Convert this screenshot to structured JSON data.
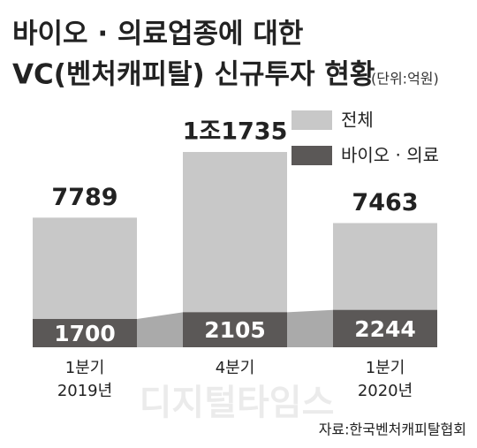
{
  "chart_data": {
    "type": "overlap-bar",
    "title": "바이오 · 의료업종에 대한",
    "subtitle": "VC(벤처캐피탈) 신규투자 현황",
    "unit": "(단위:억원)",
    "categories": [
      "1분기\n2019년",
      "4분기",
      "1분기\n2020년"
    ],
    "series": [
      {
        "name": "전체",
        "color": "#c8c8c8",
        "values": [
          7789,
          11735,
          7463
        ],
        "value_labels": [
          "7789",
          "1조1735",
          "7463"
        ]
      },
      {
        "name": "바이오 · 의료",
        "color": "#5b5857",
        "values": [
          1700,
          2105,
          2244
        ]
      }
    ],
    "ylim": [
      0,
      12000
    ],
    "source": "자료:한국벤처캐피탈협회",
    "watermark": "디지털타임스"
  }
}
